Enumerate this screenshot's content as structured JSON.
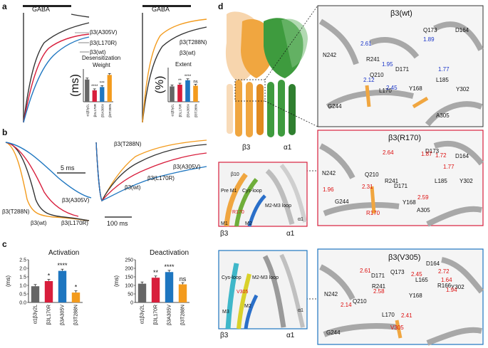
{
  "panels": {
    "a": "a",
    "b": "b",
    "c": "c",
    "d": "d"
  },
  "colors": {
    "wt": "#333333",
    "L170R": "#d81e3c",
    "A305V": "#1e76c0",
    "T288N": "#f39b1d",
    "grey_bar": "#666666",
    "beta3_chain": "#f0a640",
    "alpha1_chain": "#3e9b3e",
    "struct_grey": "#9c9c9c"
  },
  "panel_a": {
    "gaba_left": "GABA",
    "gaba_right": "GABA",
    "left_labels": [
      "β3(A305V)",
      "β3(L170R)",
      "β3(wt)"
    ],
    "right_labels": [
      "β3(T288N)",
      "β3(wt)"
    ],
    "desens_title": "Desensitization",
    "weight_title": "Weight",
    "extent_title": "Extent",
    "inset_left_ylabel": "(ms)",
    "inset_right_ylabel": "(%)",
    "inset_xlabels": [
      "α1β3γ2L",
      "β3L170R",
      "β3A305V",
      "β3T288N"
    ],
    "inset_left_sig": [
      "****",
      "***"
    ],
    "inset_right_sig": [
      "**",
      "****",
      "ns"
    ]
  },
  "panel_b": {
    "scale_left": "5 ms",
    "scale_right": "100 ms",
    "left_labels": [
      "β3(A305V)",
      "β3(T288N)",
      "β3(wt)",
      "β3(L170R)"
    ],
    "right_labels": [
      "β3(T288N)",
      "β3(A305V)",
      "β3(L170R)",
      "β3(wt)"
    ]
  },
  "panel_c": {
    "activation_title": "Activation",
    "deactivation_title": "Deactivation",
    "ylabel": "(ms)",
    "xlabels": [
      "α1β3γ2L",
      "β3L170R",
      "β3A305V",
      "β3T288N"
    ],
    "activation_sig": [
      "*",
      "****",
      "*"
    ],
    "deactivation_sig": [
      "**",
      "****",
      "ns"
    ]
  },
  "chart_data": [
    {
      "type": "bar",
      "title": "Activation",
      "ylabel": "(ms)",
      "ylim": [
        0,
        2.5
      ],
      "yticks": [
        0.0,
        0.5,
        1.0,
        1.5,
        2.0,
        2.5
      ],
      "categories": [
        "α1β3γ2L",
        "β3L170R",
        "β3A305V",
        "β3T288N"
      ],
      "values": [
        0.95,
        1.25,
        1.85,
        0.58
      ]
    },
    {
      "type": "bar",
      "title": "Deactivation",
      "ylabel": "(ms)",
      "ylim": [
        0,
        250
      ],
      "yticks": [
        0,
        50,
        100,
        150,
        200,
        250
      ],
      "categories": [
        "α1β3γ2L",
        "β3L170R",
        "β3A305V",
        "β3T288N"
      ],
      "values": [
        110,
        145,
        178,
        106
      ]
    },
    {
      "type": "bar",
      "title": "Desensitization Weight",
      "ylabel": "(ms)",
      "categories": [
        "α1β3γ2L",
        "β3L170R",
        "β3A305V",
        "β3T288N"
      ],
      "values": [
        0.68,
        0.35,
        0.45,
        0.82
      ]
    },
    {
      "type": "bar",
      "title": "Extent",
      "ylabel": "(%)",
      "categories": [
        "α1β3γ2L",
        "β3L170R",
        "β3A305V",
        "β3T288N"
      ],
      "values": [
        0.45,
        0.5,
        0.63,
        0.47
      ]
    }
  ],
  "panel_d": {
    "chain_beta": "β3",
    "chain_alpha": "α1",
    "zoom1_chain_beta": "β3",
    "zoom1_chain_alpha": "α1",
    "zoom2_chain_beta": "β3",
    "zoom2_chain_alpha": "α1",
    "box_wt_title": "β3(wt)",
    "box_r170_title": "β3(R170)",
    "box_v305_title": "β3(V305)",
    "wt_residues": [
      "Q173",
      "D164",
      "N242",
      "R241",
      "D171",
      "Q210",
      "L185",
      "Y168",
      "Y302",
      "L170",
      "A305",
      "G244"
    ],
    "wt_distances": [
      "2.61",
      "1.89",
      "1.95",
      "1.77",
      "2.12",
      "2.45"
    ],
    "r170_residues": [
      "D173",
      "D164",
      "N242",
      "R241",
      "D171",
      "Q210",
      "L185",
      "Y168",
      "Y302",
      "G244",
      "R170",
      "A305"
    ],
    "r170_distances": [
      "2.64",
      "1.87",
      "1.72",
      "1.77",
      "1.96",
      "2.31",
      "2.59"
    ],
    "v305_residues": [
      "D164",
      "Q173",
      "D171",
      "L165",
      "R166",
      "Y302",
      "N242",
      "R241",
      "Q210",
      "Y168",
      "L170",
      "V305",
      "G244"
    ],
    "v305_distances": [
      "2.61",
      "2.72",
      "2.45",
      "1.64",
      "1.94",
      "2.58",
      "2.14",
      "2.41"
    ],
    "zoom1_labels": {
      "b10": "β10",
      "pre_m1": "Pre M1",
      "cys_loop": "Cys-loop",
      "m2m3": "M2-M3 loop",
      "r170": "R170",
      "m1": "M1",
      "m2": "M2",
      "alpha1": "α1"
    },
    "zoom2_labels": {
      "cys_loop": "Cys-loop",
      "m2m3": "M2-M3 loop",
      "v305": "V305",
      "m2": "M2",
      "m3": "M3",
      "alpha1": "α1"
    }
  }
}
